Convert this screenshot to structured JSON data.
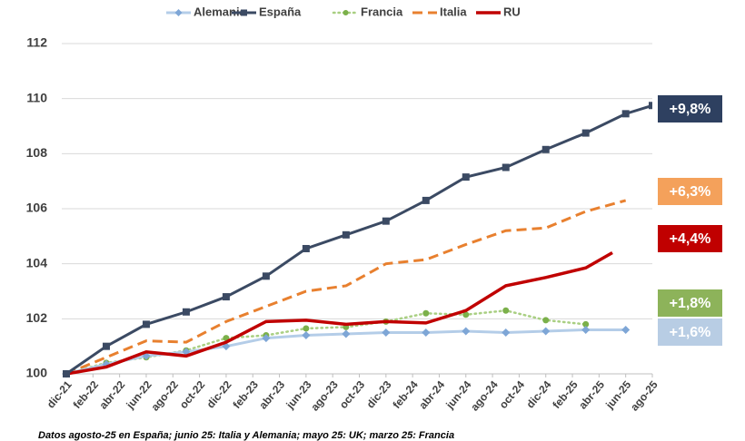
{
  "chart_data": {
    "type": "line",
    "footnote": "Datos agosto-25 en España; junio 25: Italia y Alemania; mayo 25: UK;  marzo 25: Francia",
    "xlim": [
      0,
      44
    ],
    "xticks": [
      {
        "value": 0,
        "label": "dic-21"
      },
      {
        "value": 2,
        "label": "feb-22"
      },
      {
        "value": 4,
        "label": "abr-22"
      },
      {
        "value": 6,
        "label": "jun-22"
      },
      {
        "value": 8,
        "label": "ago-22"
      },
      {
        "value": 10,
        "label": "oct-22"
      },
      {
        "value": 12,
        "label": "dic-22"
      },
      {
        "value": 14,
        "label": "feb-23"
      },
      {
        "value": 16,
        "label": "abr-23"
      },
      {
        "value": 18,
        "label": "jun-23"
      },
      {
        "value": 20,
        "label": "ago-23"
      },
      {
        "value": 22,
        "label": "oct-23"
      },
      {
        "value": 24,
        "label": "dic-23"
      },
      {
        "value": 26,
        "label": "feb-24"
      },
      {
        "value": 28,
        "label": "abr-24"
      },
      {
        "value": 30,
        "label": "jun-24"
      },
      {
        "value": 32,
        "label": "ago-24"
      },
      {
        "value": 34,
        "label": "oct-24"
      },
      {
        "value": 36,
        "label": "dic-24"
      },
      {
        "value": 38,
        "label": "feb-25"
      },
      {
        "value": 40,
        "label": "abr-25"
      },
      {
        "value": 42,
        "label": "jun-25"
      },
      {
        "value": 44,
        "label": "ago-25"
      }
    ],
    "ylim": [
      100,
      112
    ],
    "yticks": [
      100,
      102,
      104,
      106,
      108,
      110,
      112
    ],
    "grid": true,
    "legend": "top",
    "series": [
      {
        "name": "Alemania",
        "color": "#b4cde8",
        "line_style": "solid",
        "marker": "diamond",
        "marker_color": "#7ea6d6",
        "end_label": "+1,6%",
        "end_color": "#b8cde4",
        "x": [
          0,
          3,
          6,
          9,
          12,
          15,
          18,
          21,
          24,
          27,
          30,
          33,
          36,
          39,
          42
        ],
        "values": [
          100,
          100.35,
          100.65,
          100.8,
          101.0,
          101.3,
          101.4,
          101.45,
          101.5,
          101.5,
          101.55,
          101.5,
          101.55,
          101.6,
          101.6
        ]
      },
      {
        "name": "España",
        "color": "#3b4a63",
        "line_style": "solid",
        "marker": "square",
        "marker_color": "#3b4a63",
        "end_label": "+9,8%",
        "end_color": "#2e4060",
        "x": [
          0,
          3,
          6,
          9,
          12,
          15,
          18,
          21,
          24,
          27,
          30,
          33,
          36,
          39,
          42,
          44
        ],
        "values": [
          100,
          101.0,
          101.8,
          102.25,
          102.8,
          103.55,
          104.55,
          105.05,
          105.55,
          106.3,
          107.15,
          107.5,
          108.15,
          108.75,
          109.45,
          109.75
        ]
      },
      {
        "name": "Francia",
        "color": "#a9cf82",
        "line_style": "dotted",
        "marker": "circle",
        "marker_color": "#7bb04a",
        "end_label": "+1,8%",
        "end_color": "#8db35a",
        "x": [
          0,
          3,
          6,
          9,
          12,
          15,
          18,
          21,
          24,
          27,
          30,
          33,
          36,
          39
        ],
        "values": [
          100,
          100.4,
          100.6,
          100.85,
          101.3,
          101.4,
          101.65,
          101.7,
          101.9,
          102.2,
          102.15,
          102.3,
          101.95,
          101.8
        ]
      },
      {
        "name": "Italia",
        "color": "#e8802f",
        "line_style": "dashed",
        "marker": "none",
        "end_label": "+6,3%",
        "end_color": "#f4a15b",
        "x": [
          0,
          3,
          6,
          9,
          12,
          15,
          18,
          21,
          24,
          27,
          30,
          33,
          36,
          39,
          42
        ],
        "values": [
          100,
          100.6,
          101.2,
          101.15,
          101.9,
          102.45,
          103.0,
          103.2,
          104.0,
          104.15,
          104.7,
          105.2,
          105.3,
          105.9,
          106.3
        ]
      },
      {
        "name": "RU",
        "color": "#c00000",
        "line_style": "solid",
        "marker": "none",
        "end_label": "+4,4%",
        "end_color": "#c00000",
        "x": [
          0,
          3,
          6,
          9,
          12,
          15,
          18,
          21,
          24,
          27,
          30,
          33,
          36,
          39,
          41
        ],
        "values": [
          100,
          100.25,
          100.8,
          100.65,
          101.15,
          101.9,
          101.95,
          101.8,
          101.9,
          101.85,
          102.3,
          103.2,
          103.5,
          103.85,
          104.4
        ]
      }
    ]
  }
}
